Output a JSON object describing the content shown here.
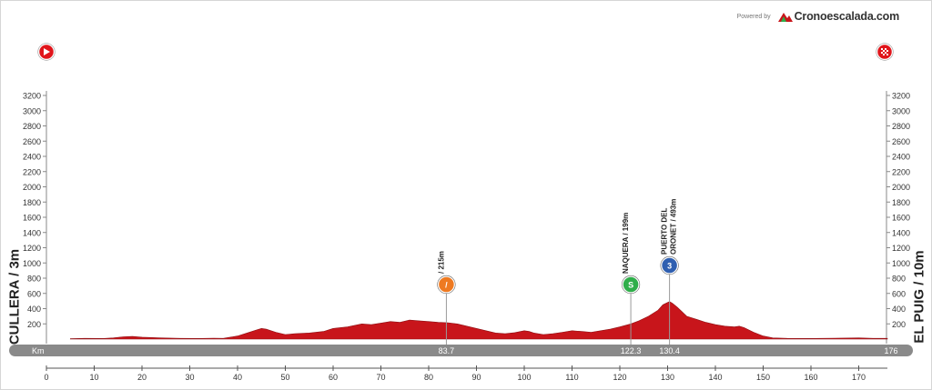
{
  "branding": {
    "powered_by": "Powered by",
    "name": "Cronoescalada.com"
  },
  "start": {
    "name": "CULLERA / 3m",
    "icon": "start-flag-icon"
  },
  "finish": {
    "name": "EL PUIG / 10m",
    "icon": "checkered-flag-icon"
  },
  "colors": {
    "profile": "#c8151b",
    "profile_dark": "#8e0f13",
    "bar": "#8a8a8a"
  },
  "chart_data": {
    "type": "area",
    "xlabel": "",
    "ylabel": "",
    "xlim": [
      0,
      176
    ],
    "ylim": [
      0,
      3200
    ],
    "x_ticks": [
      0,
      10,
      20,
      30,
      40,
      50,
      60,
      70,
      80,
      90,
      100,
      110,
      120,
      130,
      140,
      150,
      160,
      170
    ],
    "y_ticks": [
      200,
      400,
      600,
      800,
      1000,
      1200,
      1400,
      1600,
      1800,
      2000,
      2200,
      2400,
      2600,
      2800,
      3000,
      3200
    ],
    "km_bar_label": "Km",
    "km_bar_end": "176",
    "profile": [
      [
        5,
        5
      ],
      [
        8,
        10
      ],
      [
        12,
        8
      ],
      [
        14,
        15
      ],
      [
        16,
        30
      ],
      [
        18,
        35
      ],
      [
        20,
        25
      ],
      [
        24,
        15
      ],
      [
        28,
        10
      ],
      [
        32,
        8
      ],
      [
        35,
        12
      ],
      [
        37,
        10
      ],
      [
        40,
        40
      ],
      [
        42,
        80
      ],
      [
        44,
        120
      ],
      [
        45,
        140
      ],
      [
        46,
        130
      ],
      [
        48,
        90
      ],
      [
        50,
        60
      ],
      [
        52,
        70
      ],
      [
        55,
        80
      ],
      [
        58,
        100
      ],
      [
        60,
        140
      ],
      [
        63,
        160
      ],
      [
        66,
        200
      ],
      [
        68,
        190
      ],
      [
        70,
        210
      ],
      [
        72,
        230
      ],
      [
        74,
        220
      ],
      [
        76,
        250
      ],
      [
        78,
        240
      ],
      [
        80,
        230
      ],
      [
        82,
        220
      ],
      [
        84,
        215
      ],
      [
        86,
        200
      ],
      [
        88,
        170
      ],
      [
        90,
        140
      ],
      [
        92,
        110
      ],
      [
        94,
        80
      ],
      [
        96,
        70
      ],
      [
        98,
        85
      ],
      [
        100,
        110
      ],
      [
        101,
        100
      ],
      [
        102,
        80
      ],
      [
        104,
        60
      ],
      [
        106,
        70
      ],
      [
        108,
        90
      ],
      [
        110,
        110
      ],
      [
        112,
        100
      ],
      [
        114,
        90
      ],
      [
        116,
        110
      ],
      [
        118,
        130
      ],
      [
        120,
        160
      ],
      [
        122.3,
        199
      ],
      [
        124,
        240
      ],
      [
        126,
        300
      ],
      [
        128,
        380
      ],
      [
        129,
        450
      ],
      [
        130.4,
        493
      ],
      [
        131,
        470
      ],
      [
        132,
        420
      ],
      [
        133,
        360
      ],
      [
        134,
        300
      ],
      [
        136,
        260
      ],
      [
        138,
        220
      ],
      [
        140,
        190
      ],
      [
        142,
        170
      ],
      [
        144,
        160
      ],
      [
        145,
        170
      ],
      [
        146,
        150
      ],
      [
        148,
        90
      ],
      [
        150,
        40
      ],
      [
        152,
        15
      ],
      [
        155,
        10
      ],
      [
        160,
        8
      ],
      [
        165,
        12
      ],
      [
        170,
        15
      ],
      [
        173,
        10
      ],
      [
        176,
        10
      ]
    ],
    "points": [
      {
        "km": "83.7",
        "x": 83.7,
        "elev": 215,
        "label": "/ 215m",
        "icon": "sprint-icon",
        "color": "#ee7a22"
      },
      {
        "km": "122.3",
        "x": 122.3,
        "elev": 199,
        "label": "NAQUERA / 199m",
        "icon": "sprint-s-icon",
        "color": "#2fae4a"
      },
      {
        "km": "130.4",
        "x": 130.4,
        "elev": 493,
        "label": "PUERTO DEL ORONET / 493m",
        "icon": "climb-3rd-category-icon",
        "color": "#2f5fb0"
      }
    ]
  }
}
